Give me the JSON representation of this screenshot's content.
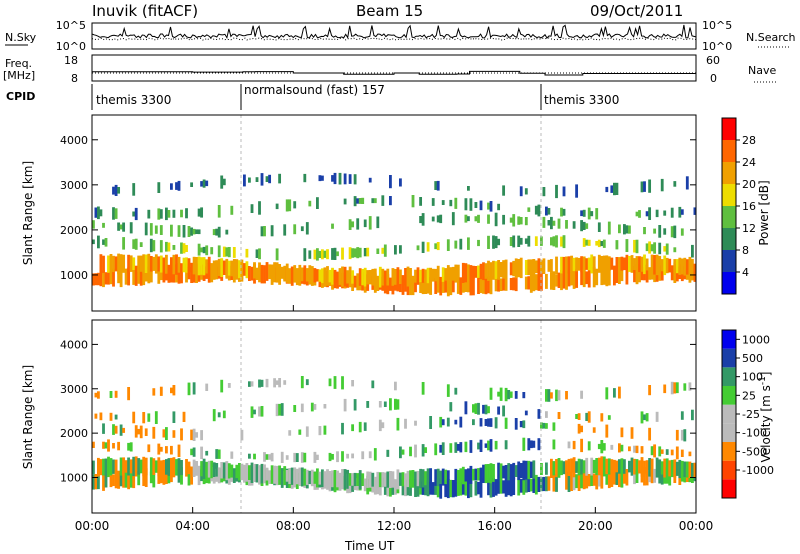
{
  "header": {
    "station": "Inuvik (fitACF)",
    "beam": "Beam 15",
    "date": "09/Oct/2011"
  },
  "noise_panel": {
    "left_label": "N.Sky",
    "right_label": "N.Search",
    "left_ticks": [
      "10^5",
      "10^0"
    ],
    "right_ticks": [
      "10^5",
      "10^0"
    ]
  },
  "freq_panel": {
    "left_label_1": "Freq.",
    "left_label_2": "[MHz]",
    "right_label": "Nave",
    "left_ticks": [
      "18",
      "8"
    ],
    "right_ticks": [
      "60",
      "0"
    ],
    "freq_mhz_levels": [
      11.4,
      11.4,
      11.3,
      11.4,
      11.5,
      10.9,
      10.4,
      10.4,
      10.9,
      10.4,
      10.5,
      11.6,
      10.8,
      10.1,
      10.7
    ],
    "freq_breaks_hours": [
      0,
      2,
      4,
      6,
      6.5,
      8,
      10,
      11,
      12,
      13,
      14.5,
      15,
      17,
      18,
      19.5,
      24
    ]
  },
  "cpid": {
    "label": "CPID",
    "segments": [
      {
        "text": "themis 3300",
        "start_hour": 0,
        "end_hour": 6
      },
      {
        "text": "normalsound (fast) 157",
        "start_hour": 6,
        "end_hour": 18
      },
      {
        "text": "themis 3300",
        "start_hour": 18,
        "end_hour": 24
      }
    ]
  },
  "colors": {
    "power_scale": [
      "#0000ee",
      "#1a3fa8",
      "#2e8b57",
      "#5fbf3f",
      "#eedd00",
      "#f0a000",
      "#ff6600",
      "#ff0000"
    ],
    "velocity_scale": [
      "#ff0000",
      "#ff4400",
      "#ff8800",
      "#bbbbbb",
      "#bbbbbb",
      "#44cc33",
      "#339966",
      "#1a3fa8",
      "#0000ee"
    ]
  },
  "chart_data": [
    {
      "type": "heatmap",
      "name": "power",
      "ylabel": "Slant Range [km]",
      "ylim": [
        200,
        4550
      ],
      "xlim_hours": [
        0,
        24
      ],
      "yticks": [
        "1000",
        "2000",
        "3000",
        "4000"
      ],
      "colorbar_label": "Power [dB]",
      "colorbar_ticks": [
        "4",
        "8",
        "12",
        "16",
        "20",
        "24",
        "28"
      ],
      "band_centers_km": [
        900,
        1100,
        1600,
        2100,
        2500,
        3000
      ],
      "band_intensity_db": [
        26,
        24,
        16,
        14,
        12,
        10
      ]
    },
    {
      "type": "heatmap",
      "name": "velocity",
      "ylabel": "Slant Range [km]",
      "ylim": [
        200,
        4550
      ],
      "xlim_hours": [
        0,
        24
      ],
      "yticks": [
        "1000",
        "2000",
        "3000",
        "4000"
      ],
      "colorbar_label": "Velocity [m s^-1]",
      "colorbar_ticks": [
        "1000",
        "500",
        "100",
        "25",
        "-25",
        "-100",
        "-500",
        "-1000"
      ]
    }
  ],
  "xaxis": {
    "label": "Time UT",
    "ticks": [
      "00:00",
      "04:00",
      "08:00",
      "12:00",
      "16:00",
      "20:00",
      "00:00"
    ]
  }
}
